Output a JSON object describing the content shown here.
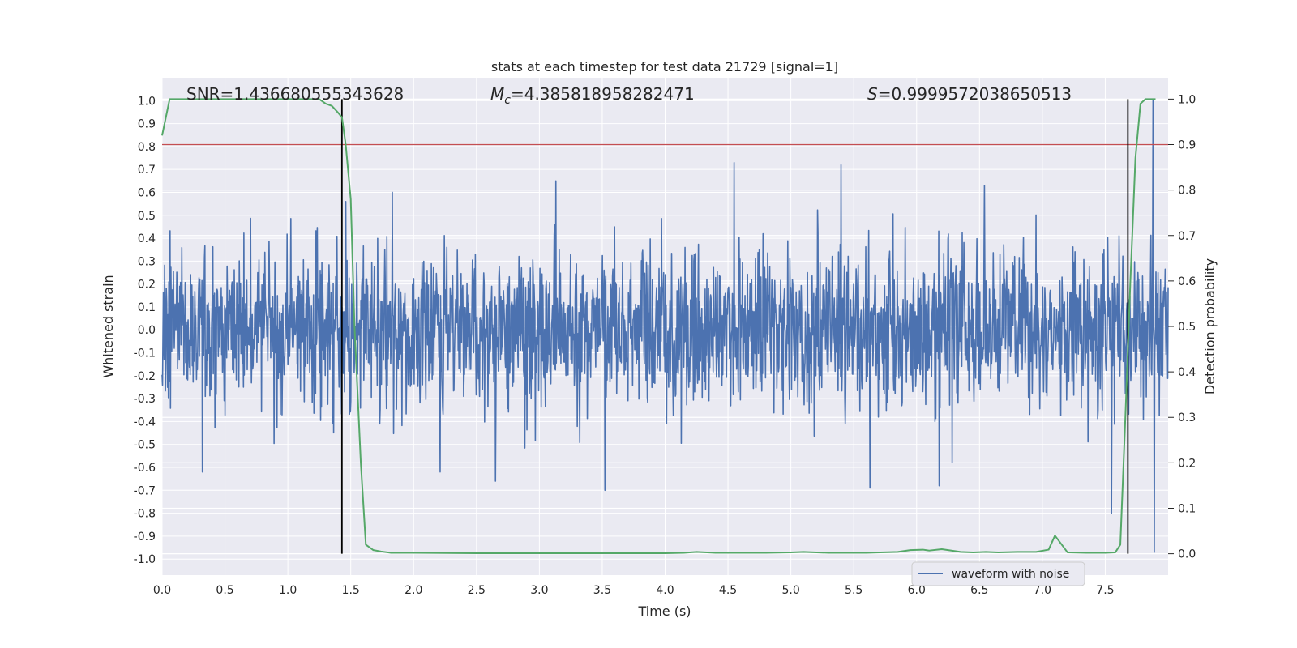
{
  "chart_data": {
    "type": "line",
    "title": "stats at each timestep for test data 21729 [signal=1]",
    "xlabel": "Time (s)",
    "ylabel": "Whitened strain",
    "y2label": "Detection probability",
    "xlim": [
      0.0,
      8.0
    ],
    "ylim": [
      -1.07,
      1.1
    ],
    "y2lim": [
      -0.047,
      1.047
    ],
    "xticks": [
      0.0,
      0.5,
      1.0,
      1.5,
      2.0,
      2.5,
      3.0,
      3.5,
      4.0,
      4.5,
      5.0,
      5.5,
      6.0,
      6.5,
      7.0,
      7.5
    ],
    "yticks": [
      -1.0,
      -0.9,
      -0.8,
      -0.7,
      -0.6,
      -0.5,
      -0.4,
      -0.3,
      -0.2,
      -0.1,
      0.0,
      0.1,
      0.2,
      0.3,
      0.4,
      0.5,
      0.6,
      0.7,
      0.8,
      0.9,
      1.0
    ],
    "y2ticks": [
      0.0,
      0.1,
      0.2,
      0.3,
      0.4,
      0.5,
      0.6,
      0.7,
      0.8,
      0.9,
      1.0
    ],
    "xtick_labels": [
      "0.0",
      "0.5",
      "1.0",
      "1.5",
      "2.0",
      "2.5",
      "3.0",
      "3.5",
      "4.0",
      "4.5",
      "5.0",
      "5.5",
      "6.0",
      "6.5",
      "7.0",
      "7.5"
    ],
    "ytick_labels": [
      "-1.0",
      "-0.9",
      "-0.8",
      "-0.7",
      "-0.6",
      "-0.5",
      "-0.4",
      "-0.3",
      "-0.2",
      "-0.1",
      "0.0",
      "0.1",
      "0.2",
      "0.3",
      "0.4",
      "0.5",
      "0.6",
      "0.7",
      "0.8",
      "0.9",
      "1.0"
    ],
    "y2tick_labels": [
      "0.0",
      "0.1",
      "0.2",
      "0.3",
      "0.4",
      "0.5",
      "0.6",
      "0.7",
      "0.8",
      "0.9",
      "1.0"
    ],
    "grid": true,
    "legend": {
      "entries": [
        "waveform with noise"
      ],
      "location": "lower-right"
    },
    "annotations": {
      "snr": "SNR=1.436680555343628",
      "mc_symbol": "M",
      "mc_subscript": "c",
      "mc_value": "=4.385818958282471",
      "s_symbol": "S",
      "s_value": "=0.9999572038650513"
    },
    "threshold_line": {
      "axis": "y2",
      "value": 0.9,
      "color": "#c44e52"
    },
    "event_lines": [
      {
        "x": 1.43,
        "y2_range": [
          0.0,
          1.0
        ]
      },
      {
        "x": 7.68,
        "y2_range": [
          0.0,
          1.0
        ]
      }
    ],
    "series": [
      {
        "name": "waveform with noise",
        "axis": "y",
        "color": "#4c72b0",
        "kind": "noise",
        "duration": 8.0,
        "envelope_typical_max": 0.4,
        "peak_excursions": [
          {
            "x": 0.32,
            "v": -0.62
          },
          {
            "x": 1.46,
            "v": 0.56
          },
          {
            "x": 1.83,
            "v": 0.6
          },
          {
            "x": 2.21,
            "v": -0.62
          },
          {
            "x": 2.65,
            "v": -0.66
          },
          {
            "x": 3.13,
            "v": 0.65
          },
          {
            "x": 3.52,
            "v": -0.7
          },
          {
            "x": 4.55,
            "v": 0.73
          },
          {
            "x": 5.4,
            "v": 0.72
          },
          {
            "x": 5.63,
            "v": -0.69
          },
          {
            "x": 6.18,
            "v": -0.68
          },
          {
            "x": 6.54,
            "v": 0.63
          },
          {
            "x": 7.55,
            "v": -0.8
          },
          {
            "x": 7.88,
            "v": 1.0
          },
          {
            "x": 7.89,
            "v": -0.97
          }
        ]
      },
      {
        "name": "detection probability",
        "axis": "y2",
        "color": "#55a868",
        "x": [
          0.0,
          0.06,
          0.12,
          0.2,
          0.3,
          0.5,
          0.8,
          1.1,
          1.2,
          1.25,
          1.3,
          1.35,
          1.4,
          1.43,
          1.46,
          1.5,
          1.53,
          1.58,
          1.62,
          1.68,
          1.74,
          1.82,
          2.0,
          2.5,
          3.0,
          3.5,
          4.0,
          4.15,
          4.25,
          4.4,
          4.6,
          4.8,
          5.0,
          5.1,
          5.3,
          5.6,
          5.85,
          5.95,
          6.05,
          6.1,
          6.2,
          6.35,
          6.45,
          6.55,
          6.65,
          6.8,
          6.95,
          7.05,
          7.1,
          7.2,
          7.35,
          7.5,
          7.58,
          7.62,
          7.66,
          7.7,
          7.74,
          7.78,
          7.82,
          7.86,
          7.9
        ],
        "values": [
          0.92,
          1.0,
          1.0,
          1.0,
          1.0,
          1.0,
          1.0,
          1.0,
          1.0,
          1.0,
          0.99,
          0.985,
          0.97,
          0.96,
          0.9,
          0.78,
          0.5,
          0.2,
          0.02,
          0.008,
          0.005,
          0.002,
          0.002,
          0.001,
          0.001,
          0.001,
          0.001,
          0.002,
          0.004,
          0.002,
          0.002,
          0.002,
          0.003,
          0.004,
          0.002,
          0.002,
          0.004,
          0.008,
          0.009,
          0.007,
          0.01,
          0.004,
          0.003,
          0.004,
          0.003,
          0.004,
          0.004,
          0.009,
          0.04,
          0.003,
          0.002,
          0.002,
          0.003,
          0.02,
          0.3,
          0.6,
          0.87,
          0.99,
          1.0,
          1.0,
          1.0
        ]
      }
    ]
  }
}
